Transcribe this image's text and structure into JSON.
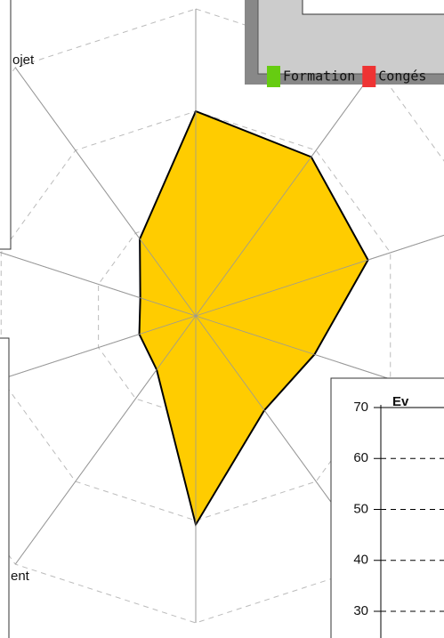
{
  "chart_data": [
    {
      "type": "radar",
      "axes": 10,
      "values": [
        2.0,
        1.92,
        1.77,
        1.22,
        1.14,
        2.04,
        0.65,
        0.58,
        0.57,
        0.93
      ],
      "color": "#ffcc00",
      "ylim": [
        0,
        3
      ],
      "yticks": [
        1,
        2,
        3
      ],
      "grid": true,
      "axis_labels": [
        "ojet",
        "ent"
      ]
    },
    {
      "type": "legend",
      "series": [
        {
          "name": "Formation",
          "color": "#66cc11"
        },
        {
          "name": "Congés",
          "color": "#ee3333"
        }
      ]
    },
    {
      "type": "line",
      "title": "Ev",
      "ylim": [
        30,
        70
      ],
      "yticks": [
        70,
        60,
        50,
        40,
        30
      ],
      "grid": true
    }
  ]
}
